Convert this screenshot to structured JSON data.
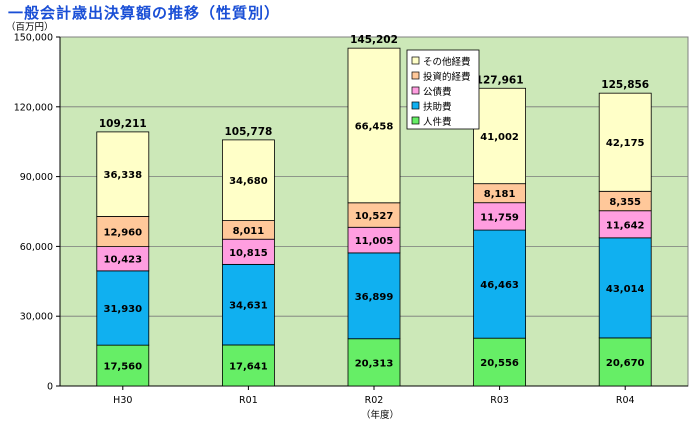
{
  "title": "一般会計歳出決算額の推移（性質別）",
  "chart_data": {
    "type": "stacked-bar",
    "categories": [
      "H30",
      "R01",
      "R02",
      "R03",
      "R04"
    ],
    "series": [
      {
        "name": "人件費",
        "color": "#66ee66",
        "values": [
          17560,
          17641,
          20313,
          20556,
          20670
        ],
        "labels": [
          "17,560",
          "17,641",
          "20,313",
          "20,556",
          "20,670"
        ]
      },
      {
        "name": "扶助費",
        "color": "#10b0f0",
        "values": [
          31930,
          34631,
          36899,
          46463,
          43014
        ],
        "labels": [
          "31,930",
          "34,631",
          "36,899",
          "46,463",
          "43,014"
        ]
      },
      {
        "name": "公債費",
        "color": "#ff9ee0",
        "values": [
          10423,
          10815,
          11005,
          11759,
          11642
        ],
        "labels": [
          "10,423",
          "10,815",
          "11,005",
          "11,759",
          "11,642"
        ]
      },
      {
        "name": "投資的経費",
        "color": "#ffc89a",
        "values": [
          12960,
          8011,
          10527,
          8181,
          8355
        ],
        "labels": [
          "12,960",
          "8,011",
          "10,527",
          "8,181",
          "8,355"
        ]
      },
      {
        "name": "その他経費",
        "color": "#ffffc8",
        "values": [
          36338,
          34680,
          66458,
          41002,
          42175
        ],
        "labels": [
          "36,338",
          "34,680",
          "66,458",
          "41,002",
          "42,175"
        ]
      }
    ],
    "totals": [
      "109,211",
      "105,778",
      "145,202",
      "127,961",
      "125,856"
    ],
    "ylim": [
      0,
      150000
    ],
    "yticks": [
      0,
      30000,
      60000,
      90000,
      120000,
      150000
    ],
    "ytick_labels": [
      "0",
      "30,000",
      "60,000",
      "90,000",
      "120,000",
      "150,000"
    ],
    "ylabel": "（百万円）",
    "xlabel": "（年度）",
    "legend": {
      "position": "top-right",
      "order": [
        "その他経費",
        "投資的経費",
        "公債費",
        "扶助費",
        "人件費"
      ]
    },
    "plot_background": "#cce8b8",
    "grid": true
  }
}
